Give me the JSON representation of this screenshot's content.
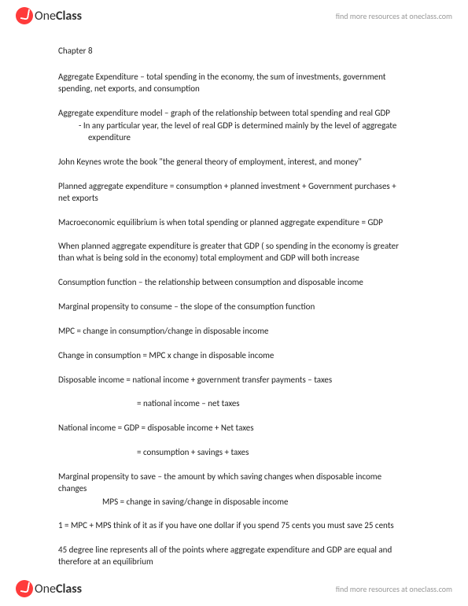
{
  "header": {
    "logo_prefix": "One",
    "logo_suffix": "Class",
    "link_text": "find more resources at oneclass.com"
  },
  "document": {
    "chapter_title": "Chapter 8",
    "p1": "Aggregate Expenditure – total spending in the economy, the sum of investments, government spending, net exports, and consumption",
    "p2": "Aggregate expenditure model – graph of the relationship between total spending and real GDP",
    "p2_sub": "-   In any particular year, the level of real GDP is determined mainly by the level of aggregate expenditure",
    "p3": "John Keynes wrote the book \"the general theory of employment, interest, and money\"",
    "p4": "Planned aggregate expenditure = consumption + planned investment + Government purchases + net exports",
    "p5": "Macroeconomic equilibrium is when total spending or planned aggregate expenditure = GDP",
    "p6": "When planned aggregate expenditure is greater that GDP ( so spending in the economy is greater than what is being sold in the economy) total employment and GDP will both increase",
    "p7": "Consumption function – the relationship between consumption and disposable income",
    "p8": "Marginal propensity to consume – the slope of the consumption function",
    "p9": "MPC = change in consumption/change in disposable income",
    "p10": "Change in consumption = MPC x change in disposable income",
    "p11": "Disposable income = national income + government transfer payments – taxes",
    "p11_sub": "= national income – net taxes",
    "p12": "National income = GDP = disposable income + Net taxes",
    "p12_sub": "= consumption + savings + taxes",
    "p13": "Marginal propensity to save – the amount by which saving changes when disposable income changes",
    "p13_sub": "MPS = change in saving/change in disposable income",
    "p14": "1 = MPC + MPS think of it as if you have one dollar if you spend 75 cents you must save 25 cents",
    "p15": "45 degree line represents all of the points where aggregate expenditure and GDP are equal and therefore at an equilibrium"
  },
  "footer": {
    "logo_prefix": "One",
    "logo_suffix": "Class",
    "link_text": "find more resources at oneclass.com"
  }
}
